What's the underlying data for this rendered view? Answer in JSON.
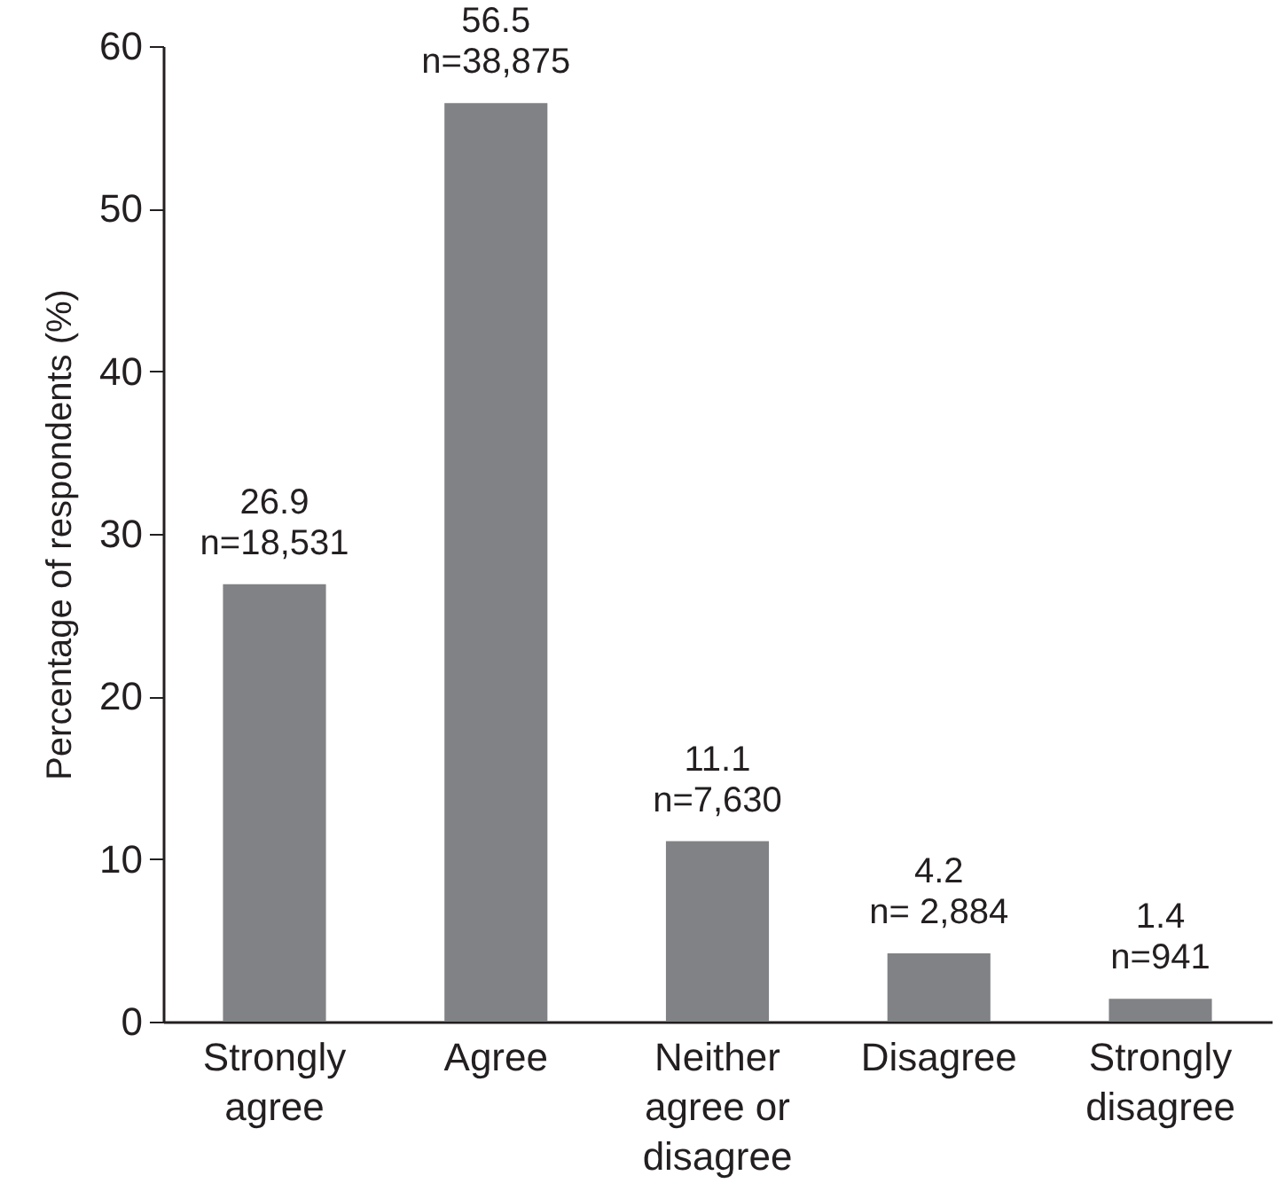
{
  "chart_data": {
    "type": "bar",
    "ylabel": "Percentage of respondents (%)",
    "categories": [
      "Strongly agree",
      "Agree",
      "Neither agree or disagree",
      "Disagree",
      "Strongly disagree"
    ],
    "values": [
      26.9,
      56.5,
      11.1,
      4.2,
      1.4
    ],
    "value_labels": [
      "26.9\nn=18,531",
      "56.5\nn=38,875",
      "11.1\nn=7,630",
      "4.2\nn= 2,884",
      "1.4\nn=941"
    ],
    "color": "#808285",
    "ylim": [
      0,
      60
    ],
    "yticks": [
      0,
      10,
      20,
      30,
      40,
      50,
      60
    ],
    "grid": false
  }
}
